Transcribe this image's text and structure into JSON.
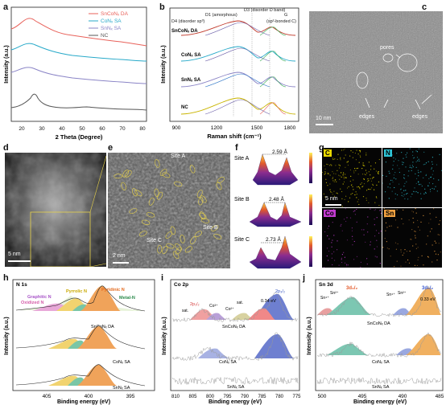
{
  "panel_labels": {
    "a": "a",
    "b": "b",
    "c": "c",
    "d": "d",
    "e": "e",
    "f": "f",
    "g": "g",
    "h": "h",
    "i": "i",
    "j": "j"
  },
  "panel_a": {
    "xlabel": "2 Theta (Degree)",
    "ylabel": "Intensity (a.u.)",
    "xticks": [
      "20",
      "30",
      "40",
      "50",
      "60",
      "70",
      "80"
    ],
    "legend": [
      {
        "name": "SnCoNₓ DA",
        "color": "#e8615a"
      },
      {
        "name": "CoNₓ SA",
        "color": "#27a9c9"
      },
      {
        "name": "SnNₓ SA",
        "color": "#8a84c6"
      },
      {
        "name": "NC",
        "color": "#555555"
      }
    ]
  },
  "panel_b": {
    "xlabel": "Raman shift (cm⁻¹)",
    "ylabel": "Intensity (a.u.)",
    "xticks": [
      "900",
      "1200",
      "1500",
      "1800"
    ],
    "annotations": {
      "d1": "D1 (amorphous)",
      "d3": "D3 (disorder D band)",
      "d4": "D4 (disorder sp³)",
      "g1": "G",
      "g2": "(sp²-bonded C)"
    },
    "samples": [
      "SnCoNₓ DA",
      "CoNₓ SA",
      "SnNₓ SA",
      "NC"
    ]
  },
  "panel_c": {
    "pores": "pores",
    "edges1": "edges",
    "edges2": "edges",
    "scale": "10 nm"
  },
  "panel_d": {
    "scale": "5 nm"
  },
  "panel_e": {
    "site_a": "Site A",
    "site_b": "Site B",
    "site_c": "Site C",
    "scale": "2 nm"
  },
  "panel_f": {
    "sites": [
      {
        "label": "Site A",
        "distance": "2.59 Å"
      },
      {
        "label": "Site B",
        "distance": "2.48 Å"
      },
      {
        "label": "Site C",
        "distance": "2.73 Å"
      }
    ]
  },
  "panel_g": {
    "maps": [
      {
        "label": "C",
        "color": "#e8d800"
      },
      {
        "label": "N",
        "color": "#2ec4d6"
      },
      {
        "label": "Co",
        "color": "#c23bd0"
      },
      {
        "label": "Sn",
        "color": "#f0a040"
      }
    ],
    "scale": "5 nm"
  },
  "panel_h": {
    "title": "N 1s",
    "xlabel": "Binding energy (eV)",
    "ylabel": "Intensity (a.u.)",
    "xticks": [
      "405",
      "400",
      "395"
    ],
    "species": {
      "pyrrolic": "Pyrrolic N",
      "graphitic": "Graphitic N",
      "oxidized": "Oxidized N",
      "pyridinic": "Pyridinic N",
      "metal": "Metal-N"
    },
    "samples": [
      "SnCoNₓ DA",
      "CoNₓ SA",
      "SnNₓ SA"
    ]
  },
  "panel_i": {
    "title": "Co 2p",
    "xlabel": "Binding energy (eV)",
    "ylabel": "Intensity (a.u.)",
    "xticks": [
      "810",
      "805",
      "800",
      "795",
      "790",
      "785",
      "780",
      "775"
    ],
    "peaks": {
      "co2p12": "2p₁/₂",
      "co3p": "Co³⁺",
      "co2p": "Co²⁺",
      "sat1": "sat.",
      "sat2": "sat.",
      "co2p32": "2p₃/₂",
      "shift": "0.34 eV"
    },
    "samples": [
      "SnCoNₓ DA",
      "CoNₓ SA",
      "SnNₓ SA"
    ]
  },
  "panel_j": {
    "title": "Sn 3d",
    "xlabel": "Binding energy (eV)",
    "ylabel": "Intensity (a.u.)",
    "xticks": [
      "500",
      "495",
      "490",
      "485"
    ],
    "peaks": {
      "sn4a": "Sn⁴⁺",
      "sn2a": "Sn²⁺",
      "d32": "3d₃/₂",
      "sn4b": "Sn⁴⁺",
      "sn2b": "Sn²⁺",
      "d52": "3d₅/₂",
      "shift": "0.33 eV"
    },
    "samples": [
      "SnCoNₓ DA",
      "CoNₓ SA",
      "SnNₓ SA"
    ]
  }
}
